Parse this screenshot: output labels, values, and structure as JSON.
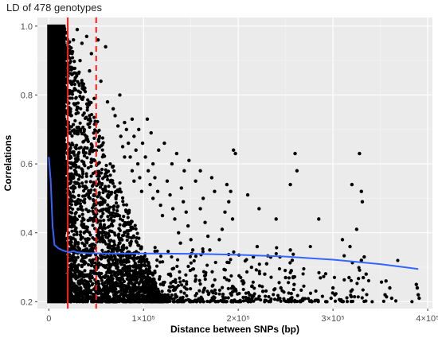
{
  "chart_data": {
    "type": "scatter",
    "title": "LD of 478 genotypes",
    "xlabel": "Distance between SNPs (bp)",
    "ylabel": "Correlations",
    "xlim": [
      -12000,
      405000
    ],
    "ylim": [
      0.18,
      1.025
    ],
    "x_ticks": [
      {
        "value": 0,
        "label": "0"
      },
      {
        "value": 100000,
        "label": "1×10⁵"
      },
      {
        "value": 200000,
        "label": "2×10⁵"
      },
      {
        "value": 300000,
        "label": "3×10⁵"
      },
      {
        "value": 400000,
        "label": "4×10⁵"
      }
    ],
    "y_ticks": [
      {
        "value": 0.2,
        "label": "0.2"
      },
      {
        "value": 0.4,
        "label": "0.4"
      },
      {
        "value": 0.6,
        "label": "0.6"
      },
      {
        "value": 0.8,
        "label": "0.8"
      },
      {
        "value": 1.0,
        "label": "1.0"
      }
    ],
    "grid": true,
    "background": "#ebebeb",
    "point_color": "#000000",
    "dense_region": {
      "x": [
        0,
        16000
      ],
      "y": [
        0.2,
        1.0
      ]
    },
    "points": [
      [
        18000,
        0.98
      ],
      [
        22000,
        0.93
      ],
      [
        26000,
        0.96
      ],
      [
        30000,
        0.99
      ],
      [
        35000,
        0.95
      ],
      [
        40000,
        0.97
      ],
      [
        45000,
        0.92
      ],
      [
        52000,
        0.96
      ],
      [
        60000,
        0.94
      ],
      [
        24000,
        0.88
      ],
      [
        28000,
        0.85
      ],
      [
        33000,
        0.9
      ],
      [
        38000,
        0.82
      ],
      [
        43000,
        0.87
      ],
      [
        48000,
        0.79
      ],
      [
        55000,
        0.84
      ],
      [
        62000,
        0.78
      ],
      [
        68000,
        0.76
      ],
      [
        75000,
        0.8
      ],
      [
        80000,
        0.72
      ],
      [
        88000,
        0.73
      ],
      [
        95000,
        0.7
      ],
      [
        104000,
        0.73
      ],
      [
        108000,
        0.69
      ],
      [
        116000,
        0.64
      ],
      [
        122000,
        0.66
      ],
      [
        130000,
        0.6
      ],
      [
        135000,
        0.63
      ],
      [
        143000,
        0.58
      ],
      [
        148000,
        0.61
      ],
      [
        155000,
        0.55
      ],
      [
        160000,
        0.58
      ],
      [
        172000,
        0.56
      ],
      [
        175000,
        0.52
      ],
      [
        188000,
        0.54
      ],
      [
        195000,
        0.64
      ],
      [
        197000,
        0.63
      ],
      [
        210000,
        0.51
      ],
      [
        222000,
        0.47
      ],
      [
        240000,
        0.44
      ],
      [
        255000,
        0.54
      ],
      [
        260000,
        0.63
      ],
      [
        262000,
        0.58
      ],
      [
        285000,
        0.44
      ],
      [
        310000,
        0.38
      ],
      [
        318000,
        0.36
      ],
      [
        320000,
        0.54
      ],
      [
        325000,
        0.41
      ],
      [
        328000,
        0.63
      ],
      [
        330000,
        0.52
      ],
      [
        331000,
        0.49
      ],
      [
        333000,
        0.33
      ],
      [
        335000,
        0.28
      ],
      [
        330000,
        0.32
      ],
      [
        332000,
        0.27
      ],
      [
        388000,
        0.25
      ],
      [
        389000,
        0.24
      ],
      [
        390000,
        0.22
      ],
      [
        391000,
        0.21
      ],
      [
        255000,
        0.35
      ],
      [
        257000,
        0.32
      ],
      [
        256000,
        0.29
      ],
      [
        258000,
        0.27
      ],
      [
        259000,
        0.25
      ],
      [
        298000,
        0.21
      ],
      [
        300000,
        0.24
      ],
      [
        302000,
        0.22
      ],
      [
        317000,
        0.27
      ],
      [
        319000,
        0.23
      ],
      [
        355000,
        0.22
      ],
      [
        356000,
        0.26
      ],
      [
        360000,
        0.24
      ],
      [
        362000,
        0.21
      ],
      [
        226000,
        0.23
      ],
      [
        228000,
        0.28
      ],
      [
        230000,
        0.31
      ],
      [
        245000,
        0.24
      ],
      [
        250000,
        0.27
      ],
      [
        205000,
        0.26
      ],
      [
        212000,
        0.22
      ],
      [
        214000,
        0.3
      ],
      [
        216000,
        0.33
      ],
      [
        220000,
        0.36
      ],
      [
        180000,
        0.38
      ],
      [
        183000,
        0.41
      ],
      [
        186000,
        0.46
      ],
      [
        190000,
        0.49
      ],
      [
        192000,
        0.52
      ],
      [
        194000,
        0.44
      ],
      [
        160000,
        0.47
      ],
      [
        163000,
        0.5
      ],
      [
        165000,
        0.43
      ],
      [
        168000,
        0.39
      ],
      [
        170000,
        0.35
      ],
      [
        140000,
        0.53
      ],
      [
        142000,
        0.49
      ],
      [
        145000,
        0.46
      ],
      [
        147000,
        0.42
      ],
      [
        150000,
        0.38
      ],
      [
        152000,
        0.35
      ],
      [
        125000,
        0.55
      ],
      [
        128000,
        0.51
      ],
      [
        131000,
        0.47
      ],
      [
        133000,
        0.44
      ],
      [
        137000,
        0.4
      ],
      [
        139000,
        0.37
      ],
      [
        110000,
        0.6
      ],
      [
        112000,
        0.56
      ],
      [
        115000,
        0.52
      ],
      [
        118000,
        0.48
      ],
      [
        120000,
        0.45
      ],
      [
        99000,
        0.66
      ],
      [
        102000,
        0.62
      ],
      [
        105000,
        0.58
      ],
      [
        107000,
        0.54
      ],
      [
        110000,
        0.5
      ],
      [
        90000,
        0.68
      ],
      [
        92000,
        0.64
      ],
      [
        94000,
        0.6
      ],
      [
        96000,
        0.56
      ],
      [
        98000,
        0.52
      ],
      [
        82000,
        0.7
      ],
      [
        84000,
        0.66
      ],
      [
        86000,
        0.62
      ],
      [
        88000,
        0.58
      ],
      [
        90000,
        0.55
      ],
      [
        70000,
        0.74
      ],
      [
        73000,
        0.71
      ],
      [
        76000,
        0.68
      ],
      [
        78000,
        0.65
      ],
      [
        80000,
        0.62
      ]
    ],
    "vlines": [
      {
        "x": 20000,
        "style": "solid",
        "color": "#ff1a1a"
      },
      {
        "x": 50000,
        "style": "dashed",
        "color": "#ff1a1a"
      }
    ],
    "smooth_line": {
      "color": "#3366ff",
      "points": [
        [
          0,
          0.62
        ],
        [
          2000,
          0.55
        ],
        [
          4000,
          0.42
        ],
        [
          6000,
          0.365
        ],
        [
          10000,
          0.355
        ],
        [
          14000,
          0.35
        ],
        [
          18000,
          0.346
        ],
        [
          22000,
          0.344
        ],
        [
          26000,
          0.347
        ],
        [
          30000,
          0.343
        ],
        [
          40000,
          0.341
        ],
        [
          60000,
          0.34
        ],
        [
          100000,
          0.34
        ],
        [
          150000,
          0.339
        ],
        [
          200000,
          0.336
        ],
        [
          250000,
          0.331
        ],
        [
          300000,
          0.322
        ],
        [
          350000,
          0.309
        ],
        [
          390000,
          0.295
        ]
      ]
    }
  }
}
